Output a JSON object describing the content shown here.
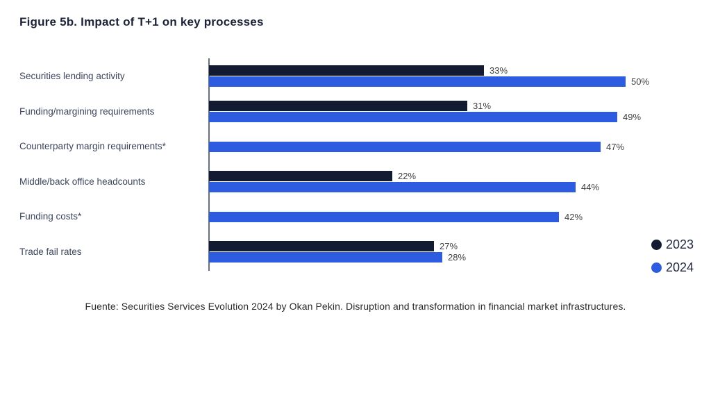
{
  "title": "Figure 5b. Impact of T+1 on key processes",
  "source": "Fuente: Securities Services Evolution 2024 by Okan Pekin. Disruption and transformation in financial market infrastructures.",
  "legend": {
    "position": "right-bottom",
    "items": [
      {
        "label": "2023",
        "color": "#131b33"
      },
      {
        "label": "2024",
        "color": "#2d5ce0"
      }
    ]
  },
  "chart_data": {
    "type": "bar",
    "orientation": "horizontal",
    "title": "Figure 5b. Impact of T+1 on key processes",
    "categories": [
      "Securities lending activity",
      "Funding/margining requirements",
      "Counterparty margin requirements*",
      "Middle/back office headcounts",
      "Funding costs*",
      "Trade fail rates"
    ],
    "series": [
      {
        "name": "2023",
        "color": "#131b33",
        "values": [
          33,
          31,
          null,
          22,
          null,
          27
        ]
      },
      {
        "name": "2024",
        "color": "#2d5ce0",
        "values": [
          50,
          49,
          47,
          44,
          42,
          28
        ]
      }
    ],
    "value_suffix": "%",
    "xlim": [
      0,
      55
    ],
    "grid": false,
    "data_labels": true,
    "legend_position": "right-bottom"
  }
}
